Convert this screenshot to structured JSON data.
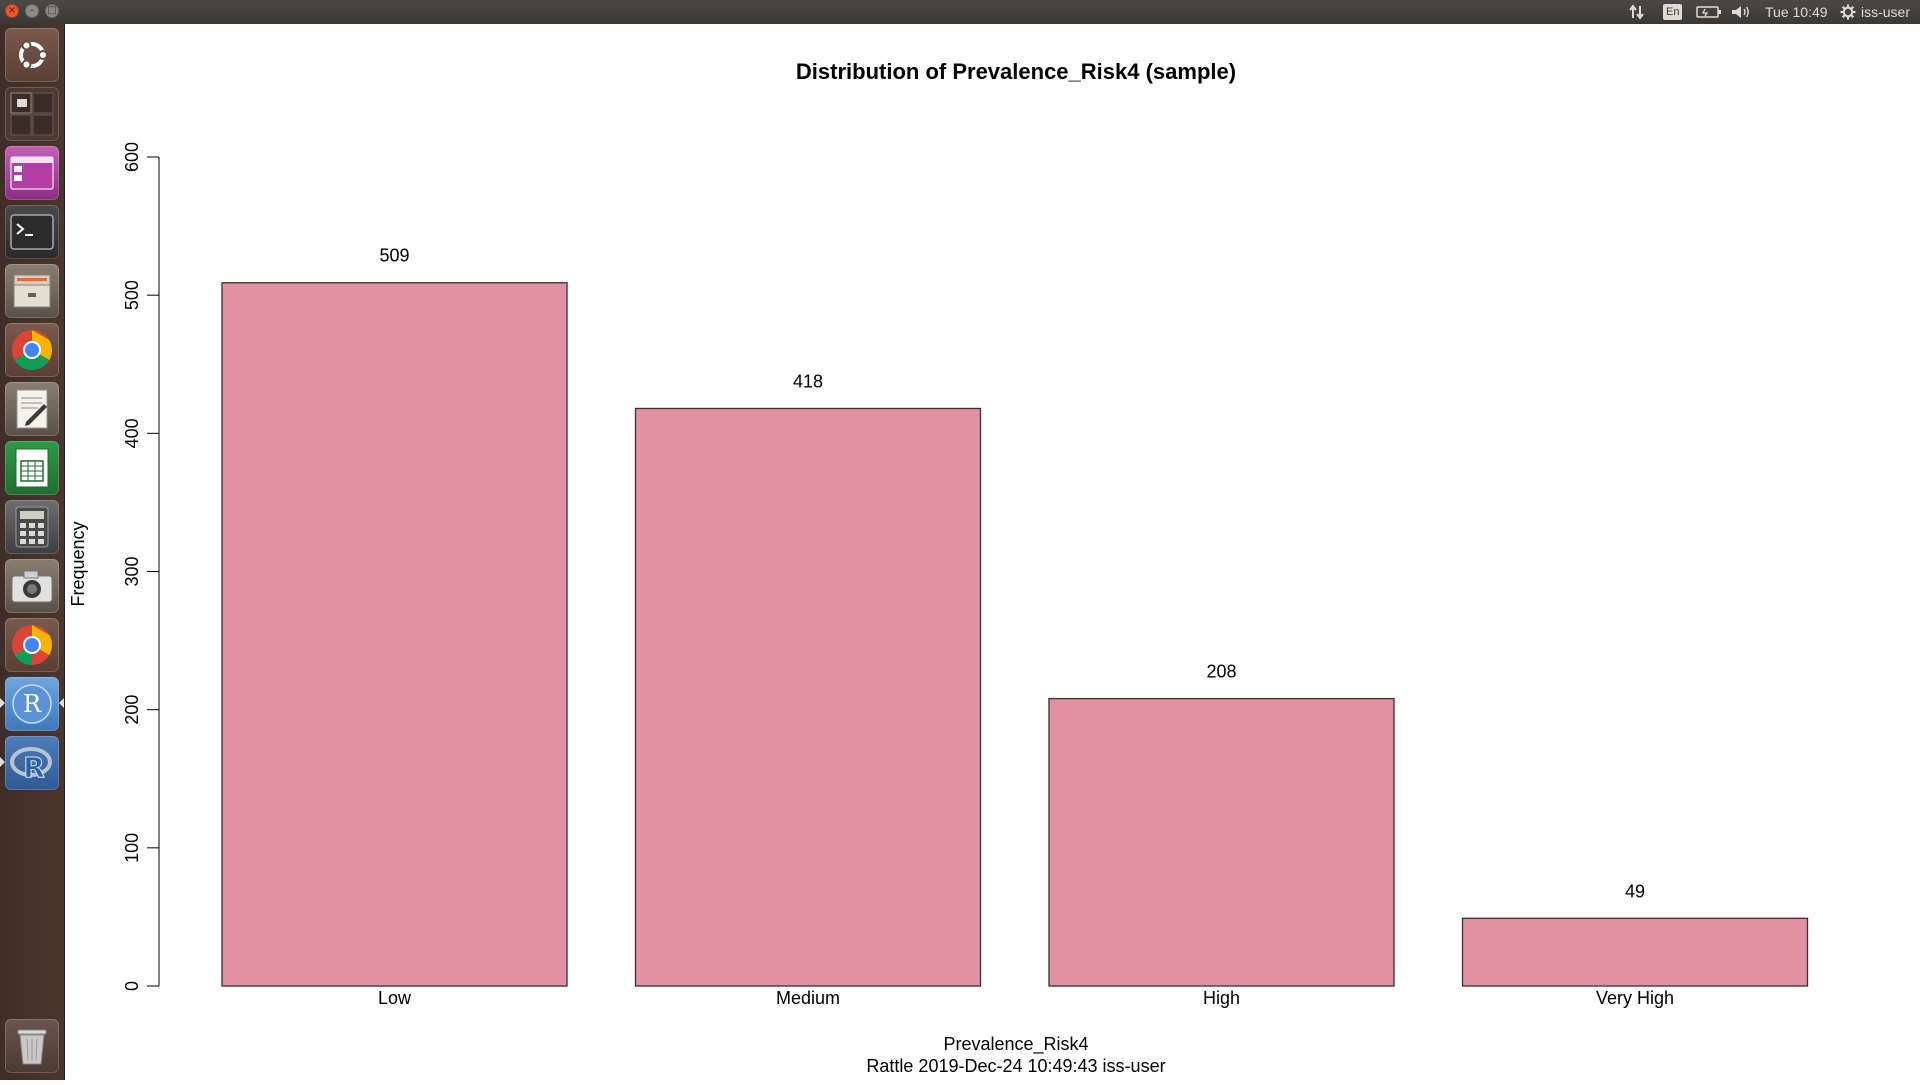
{
  "topbar": {
    "keyboard_layout": "En",
    "clock": "Tue 10:49",
    "user": "iss-user",
    "close_glyph": "×",
    "minimize_glyph": "–",
    "maximize_glyph": "□"
  },
  "launcher": {
    "items": [
      {
        "name": "ubuntu-dash-icon",
        "color": "#6b4a3e"
      },
      {
        "name": "workspace-switcher-icon",
        "color": "#5a4a44"
      },
      {
        "name": "window-app-icon",
        "color": "#b03fa5"
      },
      {
        "name": "terminal-icon",
        "color": "#2e2e2e"
      },
      {
        "name": "files-icon",
        "color": "#7a7066"
      },
      {
        "name": "chrome-icon",
        "color": "#b84b3a"
      },
      {
        "name": "text-editor-icon",
        "color": "#ece8e0"
      },
      {
        "name": "spreadsheet-icon",
        "color": "#2f8f3e"
      },
      {
        "name": "calculator-icon",
        "color": "#5e5e5e"
      },
      {
        "name": "camera-icon",
        "color": "#c9c9c9"
      },
      {
        "name": "chrome-alt-icon",
        "color": "#b84b3a"
      },
      {
        "name": "r-app-icon",
        "color": "#4a86c8"
      },
      {
        "name": "rstudio-icon",
        "color": "#3e6aa3"
      },
      {
        "name": "trash-icon",
        "color": "#5b4740"
      }
    ],
    "r_letter": "R"
  },
  "chart_data": {
    "type": "bar",
    "title": "Distribution of Prevalence_Risk4 (sample)",
    "xlabel": "Prevalence_Risk4",
    "ylabel": "Frequency",
    "footer": "Rattle 2019-Dec-24 10:49:43 iss-user",
    "categories": [
      "Low",
      "Medium",
      "High",
      "Very High"
    ],
    "values": [
      509,
      418,
      208,
      49
    ],
    "value_labels": [
      "509",
      "418",
      "208",
      "49"
    ],
    "ylim": [
      0,
      600
    ],
    "yticks": [
      0,
      100,
      200,
      300,
      400,
      500,
      600
    ],
    "ytick_labels": [
      "0",
      "100",
      "200",
      "300",
      "400",
      "500",
      "600"
    ],
    "bar_color": "#e291a3",
    "grid": false,
    "legend": "none"
  }
}
